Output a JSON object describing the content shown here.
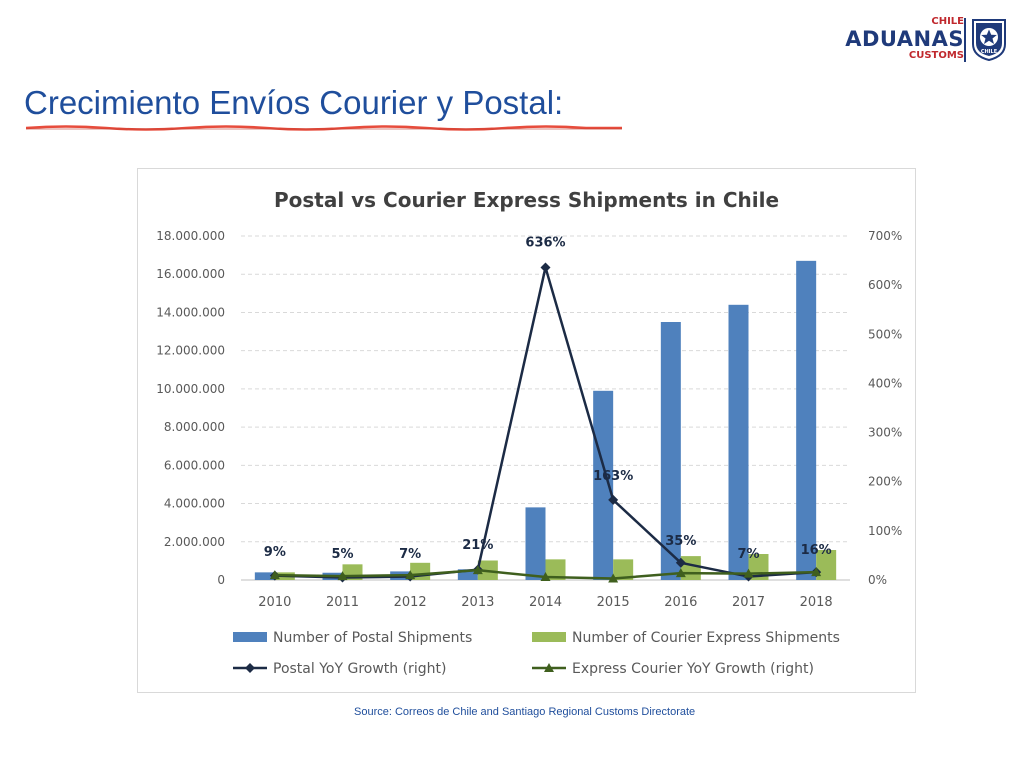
{
  "header": {
    "logo": {
      "country": "CHILE",
      "name": "ADUANAS",
      "tagline": "CUSTOMS",
      "badge_text": "CHILE",
      "icon": "star-shield-icon",
      "primary_color": "#1f3a7a",
      "accent_color": "#c0282d"
    },
    "title": "Crecimiento Envíos Courier y Postal:",
    "title_color": "#1f4e9c",
    "underline_color": "#e74c3c"
  },
  "chart_data": {
    "type": "bar",
    "title": "Postal vs Courier Express Shipments in Chile",
    "categories": [
      "2010",
      "2011",
      "2012",
      "2013",
      "2014",
      "2015",
      "2016",
      "2017",
      "2018"
    ],
    "y_left": {
      "ylim": [
        0,
        18000000
      ],
      "ticks": [
        0,
        2000000,
        4000000,
        6000000,
        8000000,
        10000000,
        12000000,
        14000000,
        16000000,
        18000000
      ],
      "tick_labels": [
        "0",
        "2.000.000",
        "4.000.000",
        "6.000.000",
        "8.000.000",
        "10.000.000",
        "12.000.000",
        "14.000.000",
        "16.000.000",
        "18.000.000"
      ]
    },
    "y_right": {
      "ylim": [
        0,
        700
      ],
      "ticks": [
        0,
        100,
        200,
        300,
        400,
        500,
        600,
        700
      ],
      "tick_labels": [
        "0%",
        "100%",
        "200%",
        "300%",
        "400%",
        "500%",
        "600%",
        "700%"
      ]
    },
    "grid": true,
    "legend_position": "bottom",
    "series": [
      {
        "name": "Number of Postal Shipments",
        "kind": "bar",
        "axis": "left",
        "color": "#4f81bd",
        "values": [
          400000,
          380000,
          450000,
          560000,
          3800000,
          9900000,
          13500000,
          14400000,
          16700000
        ]
      },
      {
        "name": "Number of Courier Express Shipments",
        "kind": "bar",
        "axis": "left",
        "color": "#9bbb59",
        "values": [
          400000,
          820000,
          900000,
          1020000,
          1080000,
          1080000,
          1250000,
          1360000,
          1570000
        ]
      },
      {
        "name": "Postal YoY Growth (right)",
        "kind": "line",
        "axis": "right",
        "color": "#1c2b45",
        "marker": "diamond",
        "values": [
          9,
          5,
          7,
          21,
          636,
          163,
          35,
          7,
          16
        ],
        "data_labels": [
          "9%",
          "5%",
          "7%",
          "21%",
          "636%",
          "163%",
          "35%",
          "7%",
          "16%"
        ]
      },
      {
        "name": "Express Courier YoY Growth (right)",
        "kind": "line",
        "axis": "right",
        "color": "#3f5f1e",
        "marker": "triangle",
        "values": [
          10,
          8,
          10,
          20,
          6,
          3,
          14,
          13,
          16
        ]
      }
    ]
  },
  "footer": {
    "source": "Source: Correos de Chile and Santiago Regional Customs Directorate"
  }
}
